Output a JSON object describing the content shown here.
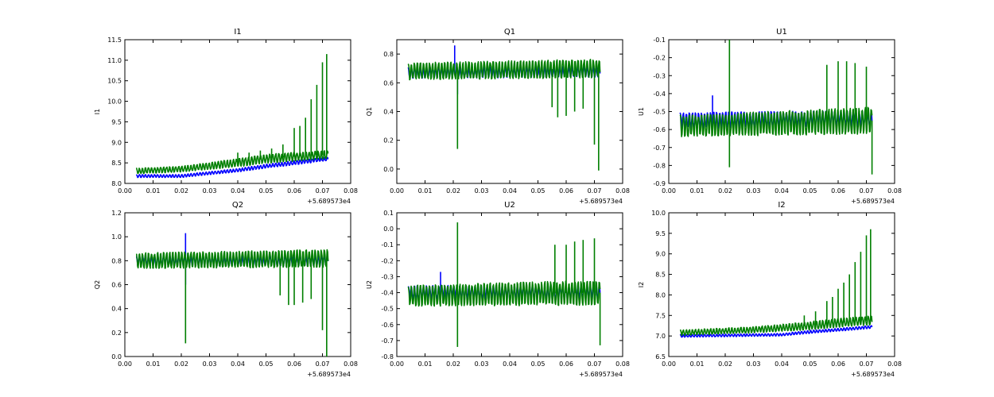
{
  "colors": {
    "series_blue": "#0000ff",
    "series_green": "#007f00",
    "axis": "#000000",
    "background": "#ffffff"
  },
  "chart_data": [
    {
      "type": "line",
      "title": "I1",
      "xlabel": "",
      "ylabel": "I1",
      "x_offset_label": "+5.689573e4",
      "xlim": [
        0.0,
        0.08
      ],
      "ylim": [
        8.0,
        11.5
      ],
      "xticks": [
        "0.00",
        "0.01",
        "0.02",
        "0.03",
        "0.04",
        "0.05",
        "0.06",
        "0.07",
        "0.08"
      ],
      "yticks": [
        "8.0",
        "8.5",
        "9.0",
        "9.5",
        "10.0",
        "10.5",
        "11.0",
        "11.5"
      ],
      "x_range": [
        0.004,
        0.072
      ],
      "series": [
        {
          "color": "#0000ff",
          "values": [
            [
              0.004,
              8.18
            ],
            [
              0.02,
              8.18
            ],
            [
              0.04,
              8.32
            ],
            [
              0.05,
              8.42
            ],
            [
              0.06,
              8.5
            ],
            [
              0.072,
              8.6
            ]
          ],
          "band": [
            0.07,
            0.07,
            0.08,
            0.09,
            0.1,
            0.08
          ]
        },
        {
          "color": "#007f00",
          "values": [
            [
              0.004,
              8.3
            ],
            [
              0.02,
              8.35
            ],
            [
              0.04,
              8.5
            ],
            [
              0.05,
              8.6
            ],
            [
              0.06,
              8.65
            ],
            [
              0.072,
              8.7
            ]
          ],
          "band": [
            0.14,
            0.14,
            0.2,
            0.22,
            0.22,
            0.2
          ],
          "spikes": [
            [
              0.04,
              8.75
            ],
            [
              0.044,
              8.75
            ],
            [
              0.048,
              8.8
            ],
            [
              0.052,
              8.85
            ],
            [
              0.056,
              8.95
            ],
            [
              0.06,
              9.35
            ],
            [
              0.062,
              9.4
            ],
            [
              0.064,
              9.6
            ],
            [
              0.066,
              10.05
            ],
            [
              0.068,
              10.4
            ],
            [
              0.07,
              10.95
            ],
            [
              0.0715,
              11.15
            ]
          ]
        }
      ]
    },
    {
      "type": "line",
      "title": "Q1",
      "xlabel": "",
      "ylabel": "Q1",
      "x_offset_label": "+5.689573e4",
      "xlim": [
        0.0,
        0.08
      ],
      "ylim": [
        -0.1,
        0.9
      ],
      "xticks": [
        "0.00",
        "0.01",
        "0.02",
        "0.03",
        "0.04",
        "0.05",
        "0.06",
        "0.07",
        "0.08"
      ],
      "yticks": [
        "0.0",
        "0.2",
        "0.4",
        "0.6",
        "0.8"
      ],
      "x_range": [
        0.004,
        0.072
      ],
      "series": [
        {
          "color": "#0000ff",
          "values": [
            [
              0.004,
              0.67
            ],
            [
              0.072,
              0.68
            ]
          ],
          "band": [
            0.08,
            0.08
          ],
          "spikes": [
            [
              0.0205,
              0.86
            ],
            [
              0.0215,
              0.52
            ]
          ]
        },
        {
          "color": "#007f00",
          "values": [
            [
              0.004,
              0.68
            ],
            [
              0.072,
              0.7
            ]
          ],
          "band": [
            0.12,
            0.13
          ],
          "spikes": [
            [
              0.0215,
              0.14
            ],
            [
              0.055,
              0.43
            ],
            [
              0.057,
              0.36
            ],
            [
              0.06,
              0.37
            ],
            [
              0.063,
              0.4
            ],
            [
              0.066,
              0.42
            ],
            [
              0.07,
              0.17
            ],
            [
              0.0715,
              -0.01
            ]
          ]
        }
      ]
    },
    {
      "type": "line",
      "title": "U1",
      "xlabel": "",
      "ylabel": "U1",
      "x_offset_label": "+5.689573e4",
      "xlim": [
        0.0,
        0.08
      ],
      "ylim": [
        -0.9,
        -0.1
      ],
      "xticks": [
        "0.00",
        "0.01",
        "0.02",
        "0.03",
        "0.04",
        "0.05",
        "0.06",
        "0.07",
        "0.08"
      ],
      "yticks": [
        "-0.9",
        "-0.8",
        "-0.7",
        "-0.6",
        "-0.5",
        "-0.4",
        "-0.3",
        "-0.2",
        "-0.1"
      ],
      "x_range": [
        0.004,
        0.072
      ],
      "series": [
        {
          "color": "#0000ff",
          "values": [
            [
              0.004,
              -0.55
            ],
            [
              0.072,
              -0.54
            ]
          ],
          "band": [
            0.09,
            0.09
          ],
          "spikes": [
            [
              0.0155,
              -0.41
            ]
          ]
        },
        {
          "color": "#007f00",
          "values": [
            [
              0.004,
              -0.58
            ],
            [
              0.072,
              -0.55
            ]
          ],
          "band": [
            0.12,
            0.15
          ],
          "spikes": [
            [
              0.0215,
              -0.1
            ],
            [
              0.0215,
              -0.81
            ],
            [
              0.056,
              -0.24
            ],
            [
              0.06,
              -0.22
            ],
            [
              0.063,
              -0.22
            ],
            [
              0.066,
              -0.23
            ],
            [
              0.07,
              -0.25
            ],
            [
              0.072,
              -0.85
            ]
          ]
        }
      ]
    },
    {
      "type": "line",
      "title": "Q2",
      "xlabel": "",
      "ylabel": "Q2",
      "x_offset_label": "+5.689573e4",
      "xlim": [
        0.0,
        0.08
      ],
      "ylim": [
        0.0,
        1.2
      ],
      "xticks": [
        "0.00",
        "0.01",
        "0.02",
        "0.03",
        "0.04",
        "0.05",
        "0.06",
        "0.07",
        "0.08"
      ],
      "yticks": [
        "0.0",
        "0.2",
        "0.4",
        "0.6",
        "0.8",
        "1.0",
        "1.2"
      ],
      "x_range": [
        0.004,
        0.072
      ],
      "series": [
        {
          "color": "#0000ff",
          "values": [
            [
              0.004,
              0.8
            ],
            [
              0.072,
              0.8
            ]
          ],
          "band": [
            0.09,
            0.09
          ],
          "spikes": [
            [
              0.0215,
              1.03
            ],
            [
              0.0215,
              0.6
            ]
          ]
        },
        {
          "color": "#007f00",
          "values": [
            [
              0.004,
              0.8
            ],
            [
              0.072,
              0.82
            ]
          ],
          "band": [
            0.13,
            0.15
          ],
          "spikes": [
            [
              0.0215,
              0.11
            ],
            [
              0.055,
              0.51
            ],
            [
              0.058,
              0.43
            ],
            [
              0.06,
              0.43
            ],
            [
              0.063,
              0.45
            ],
            [
              0.066,
              0.48
            ],
            [
              0.07,
              0.22
            ],
            [
              0.0715,
              0.0
            ]
          ]
        }
      ]
    },
    {
      "type": "line",
      "title": "U2",
      "xlabel": "",
      "ylabel": "U2",
      "x_offset_label": "+5.689573e4",
      "xlim": [
        0.0,
        0.08
      ],
      "ylim": [
        -0.8,
        0.1
      ],
      "xticks": [
        "0.00",
        "0.01",
        "0.02",
        "0.03",
        "0.04",
        "0.05",
        "0.06",
        "0.07",
        "0.08"
      ],
      "yticks": [
        "-0.8",
        "-0.7",
        "-0.6",
        "-0.5",
        "-0.4",
        "-0.3",
        "-0.2",
        "-0.1",
        "0.0",
        "0.1"
      ],
      "x_range": [
        0.004,
        0.072
      ],
      "series": [
        {
          "color": "#0000ff",
          "values": [
            [
              0.004,
              -0.4
            ],
            [
              0.072,
              -0.4
            ]
          ],
          "band": [
            0.09,
            0.09
          ],
          "spikes": [
            [
              0.0155,
              -0.27
            ]
          ]
        },
        {
          "color": "#007f00",
          "values": [
            [
              0.004,
              -0.42
            ],
            [
              0.072,
              -0.4
            ]
          ],
          "band": [
            0.13,
            0.16
          ],
          "spikes": [
            [
              0.0215,
              0.04
            ],
            [
              0.0215,
              -0.74
            ],
            [
              0.056,
              -0.1
            ],
            [
              0.06,
              -0.1
            ],
            [
              0.063,
              -0.08
            ],
            [
              0.066,
              -0.07
            ],
            [
              0.07,
              -0.06
            ],
            [
              0.072,
              -0.73
            ]
          ]
        }
      ]
    },
    {
      "type": "line",
      "title": "I2",
      "xlabel": "",
      "ylabel": "I2",
      "x_offset_label": "+5.689573e4",
      "xlim": [
        0.0,
        0.08
      ],
      "ylim": [
        6.5,
        10.0
      ],
      "xticks": [
        "0.00",
        "0.01",
        "0.02",
        "0.03",
        "0.04",
        "0.05",
        "0.06",
        "0.07",
        "0.08"
      ],
      "yticks": [
        "6.5",
        "7.0",
        "7.5",
        "8.0",
        "8.5",
        "9.0",
        "9.5",
        "10.0"
      ],
      "x_range": [
        0.004,
        0.072
      ],
      "series": [
        {
          "color": "#0000ff",
          "values": [
            [
              0.004,
              7.0
            ],
            [
              0.04,
              7.03
            ],
            [
              0.05,
              7.1
            ],
            [
              0.06,
              7.15
            ],
            [
              0.072,
              7.22
            ]
          ],
          "band": [
            0.06,
            0.06,
            0.07,
            0.07,
            0.07
          ]
        },
        {
          "color": "#007f00",
          "values": [
            [
              0.004,
              7.08
            ],
            [
              0.03,
              7.15
            ],
            [
              0.05,
              7.25
            ],
            [
              0.06,
              7.32
            ],
            [
              0.072,
              7.38
            ]
          ],
          "band": [
            0.13,
            0.15,
            0.2,
            0.22,
            0.22
          ],
          "spikes": [
            [
              0.048,
              7.5
            ],
            [
              0.052,
              7.6
            ],
            [
              0.056,
              7.85
            ],
            [
              0.058,
              7.95
            ],
            [
              0.06,
              8.15
            ],
            [
              0.062,
              8.3
            ],
            [
              0.064,
              8.5
            ],
            [
              0.066,
              8.8
            ],
            [
              0.068,
              9.05
            ],
            [
              0.07,
              9.45
            ],
            [
              0.0715,
              9.6
            ]
          ]
        }
      ]
    }
  ]
}
